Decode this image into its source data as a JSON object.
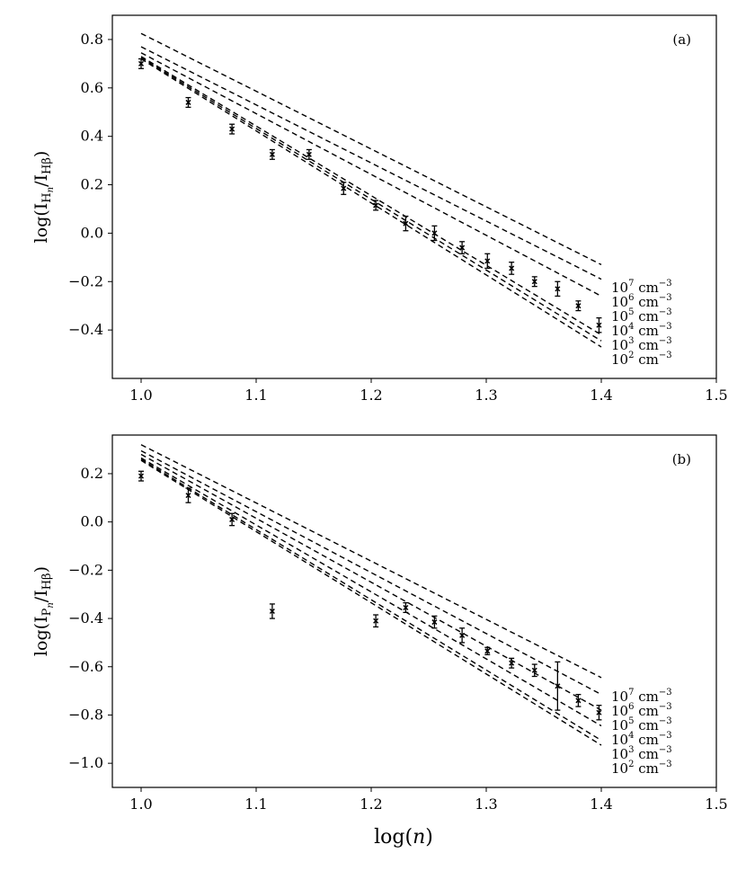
{
  "chart_data": [
    {
      "type": "scatter",
      "panel_label": "(a)",
      "xlabel": "",
      "ylabel": "log(I_{H_n}/I_{Hβ})",
      "xlim": [
        0.975,
        1.5
      ],
      "ylim": [
        -0.6,
        0.9
      ],
      "xticks": [
        1.0,
        1.1,
        1.2,
        1.3,
        1.4,
        1.5
      ],
      "xtick_labels": [
        "1.0",
        "1.1",
        "1.2",
        "1.3",
        "1.4",
        "1.5"
      ],
      "yticks": [
        0.8,
        0.6,
        0.4,
        0.2,
        0.0,
        -0.2,
        -0.4
      ],
      "ytick_labels": [
        "0.8",
        "0.6",
        "0.4",
        "0.2",
        "0.0",
        "−0.2",
        "−0.4"
      ],
      "grid": false,
      "points": {
        "x": [
          1.0,
          1.041,
          1.079,
          1.114,
          1.146,
          1.176,
          1.204,
          1.23,
          1.255,
          1.279,
          1.301,
          1.322,
          1.342,
          1.362,
          1.38,
          1.398
        ],
        "y": [
          0.7,
          0.54,
          0.43,
          0.325,
          0.325,
          0.185,
          0.115,
          0.04,
          0.0,
          -0.06,
          -0.115,
          -0.145,
          -0.2,
          -0.23,
          -0.3,
          -0.38
        ],
        "yerr": [
          0.02,
          0.02,
          0.02,
          0.02,
          0.02,
          0.025,
          0.02,
          0.03,
          0.03,
          0.025,
          0.03,
          0.025,
          0.02,
          0.03,
          0.02,
          0.03
        ]
      },
      "model_lines": [
        {
          "density": "10^7",
          "label_value": "7",
          "x": [
            1.0,
            1.4
          ],
          "y": [
            0.825,
            -0.13
          ]
        },
        {
          "density": "10^6",
          "label_value": "6",
          "x": [
            1.0,
            1.4
          ],
          "y": [
            0.77,
            -0.19
          ]
        },
        {
          "density": "10^5",
          "label_value": "5",
          "x": [
            1.0,
            1.4
          ],
          "y": [
            0.745,
            -0.26
          ]
        },
        {
          "density": "10^4",
          "label_value": "4",
          "x": [
            1.0,
            1.4
          ],
          "y": [
            0.73,
            -0.42
          ]
        },
        {
          "density": "10^3",
          "label_value": "3",
          "x": [
            1.0,
            1.4
          ],
          "y": [
            0.725,
            -0.445
          ]
        },
        {
          "density": "10^2",
          "label_value": "2",
          "x": [
            1.0,
            1.4
          ],
          "y": [
            0.72,
            -0.47
          ]
        }
      ],
      "line_label_unit": "cm",
      "line_label_exponent": "−3"
    },
    {
      "type": "scatter",
      "panel_label": "(b)",
      "xlabel": "log(n)",
      "ylabel": "log(I_{P_n}/I_{Hβ})",
      "xlim": [
        0.975,
        1.5
      ],
      "ylim": [
        -1.1,
        0.36
      ],
      "xticks": [
        1.0,
        1.1,
        1.2,
        1.3,
        1.4,
        1.5
      ],
      "xtick_labels": [
        "1.0",
        "1.1",
        "1.2",
        "1.3",
        "1.4",
        "1.5"
      ],
      "yticks": [
        0.2,
        0.0,
        -0.2,
        -0.4,
        -0.6,
        -0.8,
        -1.0
      ],
      "ytick_labels": [
        "0.2",
        "0.0",
        "−0.2",
        "−0.4",
        "−0.6",
        "−0.8",
        "−1.0"
      ],
      "grid": false,
      "points": {
        "x": [
          1.0,
          1.041,
          1.079,
          1.114,
          1.204,
          1.23,
          1.255,
          1.279,
          1.301,
          1.322,
          1.342,
          1.362,
          1.38,
          1.398
        ],
        "y": [
          0.19,
          0.11,
          0.01,
          -0.37,
          -0.41,
          -0.355,
          -0.415,
          -0.47,
          -0.535,
          -0.585,
          -0.615,
          -0.68,
          -0.74,
          -0.79
        ],
        "yerr": [
          0.02,
          0.03,
          0.025,
          0.03,
          0.025,
          0.02,
          0.025,
          0.03,
          0.015,
          0.02,
          0.025,
          0.1,
          0.025,
          0.03
        ]
      },
      "model_lines": [
        {
          "density": "10^7",
          "label_value": "7",
          "x": [
            1.0,
            1.4
          ],
          "y": [
            0.32,
            -0.645
          ]
        },
        {
          "density": "10^6",
          "label_value": "6",
          "x": [
            1.0,
            1.4
          ],
          "y": [
            0.295,
            -0.715
          ]
        },
        {
          "density": "10^5",
          "label_value": "5",
          "x": [
            1.0,
            1.4
          ],
          "y": [
            0.28,
            -0.78
          ]
        },
        {
          "density": "10^4",
          "label_value": "4",
          "x": [
            1.0,
            1.4
          ],
          "y": [
            0.265,
            -0.845
          ]
        },
        {
          "density": "10^3",
          "label_value": "3",
          "x": [
            1.0,
            1.4
          ],
          "y": [
            0.26,
            -0.905
          ]
        },
        {
          "density": "10^2",
          "label_value": "2",
          "x": [
            1.0,
            1.4
          ],
          "y": [
            0.255,
            -0.925
          ]
        }
      ],
      "line_label_unit": "cm",
      "line_label_exponent": "−3"
    }
  ]
}
